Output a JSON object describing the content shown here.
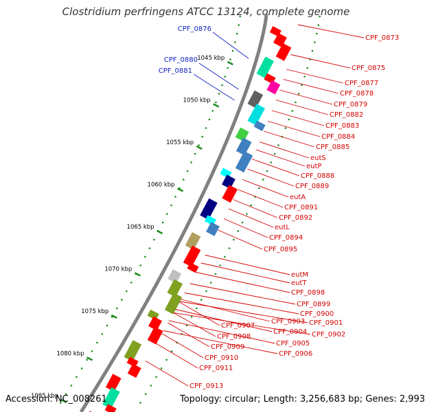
{
  "title": "Clostridium perfringens ATCC 13124, complete genome",
  "footer": {
    "accession": "Accession: NC_008261",
    "topology": "Topology: circular; Length: 3,256,683 bp; Genes: 2,993"
  },
  "colors": {
    "forward_label": "#d40000",
    "reverse_label": "#1020c0",
    "backbone": "#808080",
    "tick_marks": "#1a8a1a"
  },
  "kbp_ticks": [
    "1045 kbp",
    "1050 kbp",
    "1055 kbp",
    "1060 kbp",
    "1065 kbp",
    "1070 kbp",
    "1075 kbp",
    "1080 kbp",
    "1085 kbp"
  ],
  "reverse_genes": [
    "CPF_0876",
    "CPF_0880",
    "CPF_0881"
  ],
  "forward_genes": [
    "CPF_0873",
    "CPF_0875",
    "CPF_0877",
    "CPF_0878",
    "CPF_0879",
    "CPF_0882",
    "CPF_0883",
    "CPF_0884",
    "CPF_0885",
    "eutS",
    "eutP",
    "CPF_0888",
    "CPF_0889",
    "eutA",
    "CPF_0891",
    "CPF_0892",
    "eutL",
    "CPF_0894",
    "CPF_0895",
    "eutM",
    "eutT",
    "CPF_0898",
    "CPF_0899",
    "CPF_0900",
    "CPF_0901",
    "CPF_0902",
    "CPF_0903",
    "CPF_0904",
    "CPF_0905",
    "CPF_0906",
    "CPF_0907",
    "CPF_0908",
    "CPF_0909",
    "CPF_0910",
    "CPF_0911",
    "CPF_0913"
  ]
}
